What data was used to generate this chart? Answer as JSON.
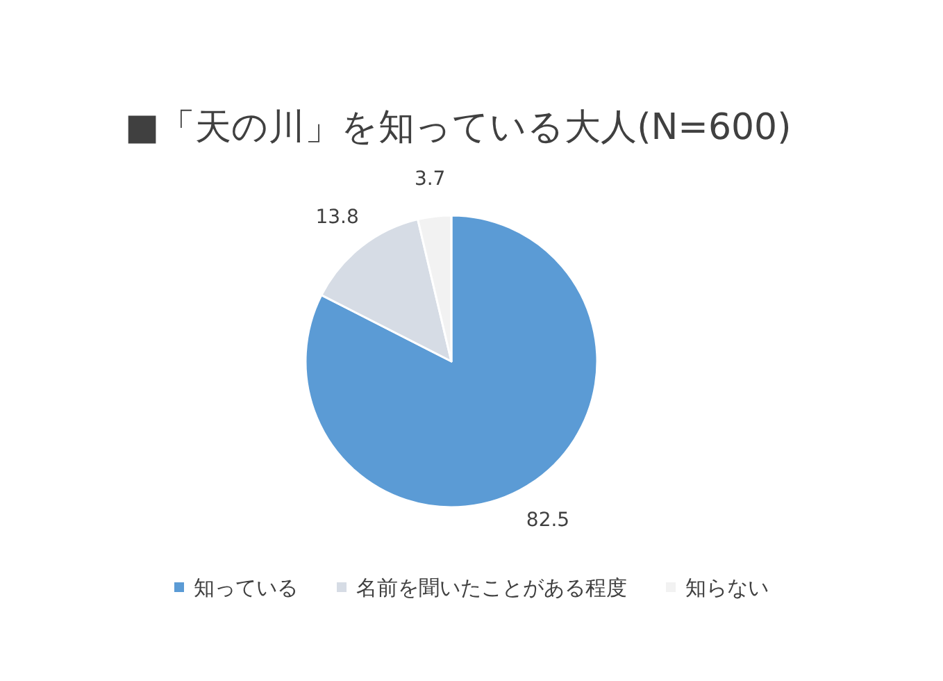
{
  "chart_data": {
    "type": "pie",
    "title": "■「天の川」を知っている大人(N=600)",
    "categories": [
      "知っている",
      "名前を聞いたことがある程度",
      "知らない"
    ],
    "values": [
      82.5,
      13.8,
      3.7
    ],
    "colors": [
      "#5b9bd5",
      "#d6dce5",
      "#f2f2f2"
    ],
    "data_labels": true,
    "legend": "bottom"
  }
}
